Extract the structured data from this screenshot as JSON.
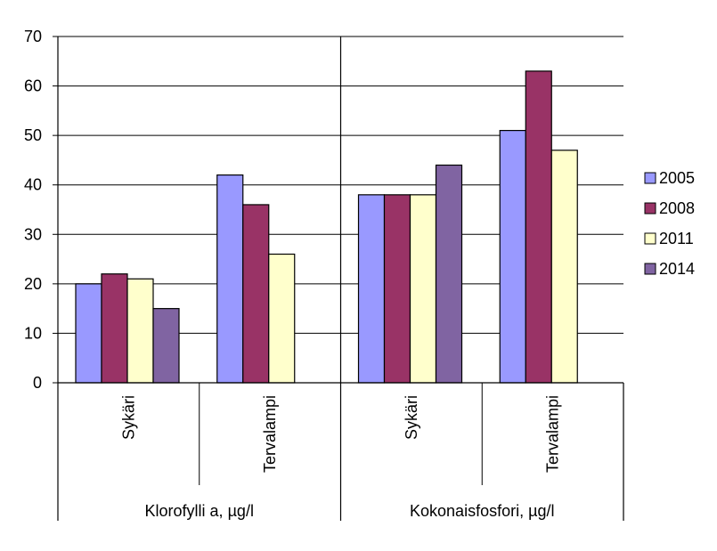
{
  "chart_data": {
    "type": "bar",
    "groups": [
      {
        "label": "Klorofylli a, µg/l",
        "categories": [
          "Sykäri",
          "Tervalampi"
        ]
      },
      {
        "label": "Kokonaisfosfori, µg/l",
        "categories": [
          "Sykäri",
          "Tervalampi"
        ]
      }
    ],
    "series": [
      {
        "name": "2005",
        "color": "#9999ff",
        "values": [
          20,
          42,
          38,
          51
        ]
      },
      {
        "name": "2008",
        "color": "#993366",
        "values": [
          22,
          36,
          38,
          63
        ]
      },
      {
        "name": "2011",
        "color": "#ffffcc",
        "values": [
          21,
          26,
          38,
          47
        ]
      },
      {
        "name": "2014",
        "color": "#8064a2",
        "values": [
          15,
          null,
          44,
          null
        ]
      }
    ],
    "ylim": [
      0,
      70
    ],
    "yticks": [
      0,
      10,
      20,
      30,
      40,
      50,
      60,
      70
    ],
    "grid": true,
    "legend_position": "right"
  }
}
